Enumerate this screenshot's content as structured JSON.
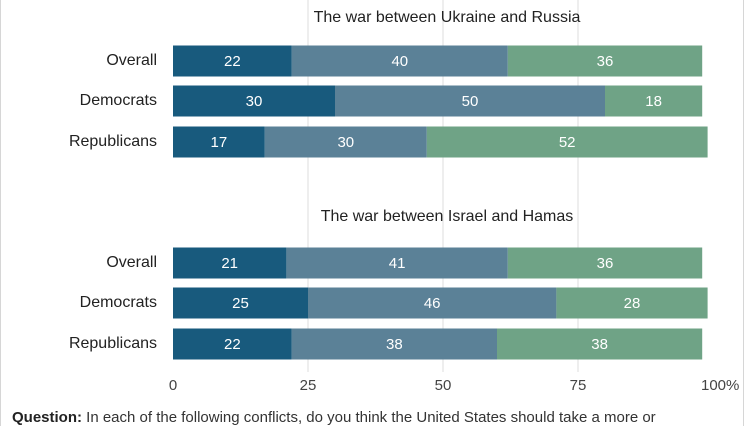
{
  "colors": {
    "more_involved": "#185a7d",
    "same": "#5b8197",
    "less_involved": "#6fa386",
    "grid": "#dcdcdc",
    "text": "#222222"
  },
  "question": {
    "label": "Question:",
    "text": " In each of the following conflicts, do you think the United States should take a more or"
  },
  "chart_data": {
    "type": "bar",
    "orientation": "horizontal",
    "stacked": true,
    "xlim": [
      0,
      100
    ],
    "xticks": [
      "0",
      "25",
      "50",
      "75",
      "100%"
    ],
    "grid": true,
    "panels": [
      {
        "title": "The war between Ukraine and Russia",
        "categories": [
          "Overall",
          "Democrats",
          "Republicans"
        ],
        "rows": [
          [
            22,
            40,
            36
          ],
          [
            30,
            50,
            18
          ],
          [
            17,
            30,
            52
          ]
        ]
      },
      {
        "title": "The war between Israel and Hamas",
        "categories": [
          "Overall",
          "Democrats",
          "Republicans"
        ],
        "rows": [
          [
            21,
            41,
            36
          ],
          [
            25,
            46,
            28
          ],
          [
            22,
            38,
            38
          ]
        ]
      }
    ]
  }
}
